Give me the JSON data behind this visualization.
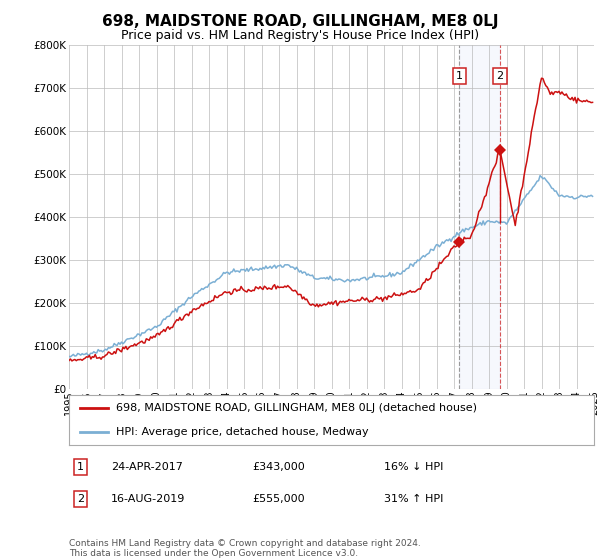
{
  "title": "698, MAIDSTONE ROAD, GILLINGHAM, ME8 0LJ",
  "subtitle": "Price paid vs. HM Land Registry's House Price Index (HPI)",
  "ylim": [
    0,
    800000
  ],
  "yticks": [
    0,
    100000,
    200000,
    300000,
    400000,
    500000,
    600000,
    700000,
    800000
  ],
  "ytick_labels": [
    "£0",
    "£100K",
    "£200K",
    "£300K",
    "£400K",
    "£500K",
    "£600K",
    "£700K",
    "£800K"
  ],
  "hpi_color": "#7bafd4",
  "price_color": "#cc1111",
  "transaction1": {
    "date_num": 2017.31,
    "price": 343000,
    "label": "1",
    "date_str": "24-APR-2017",
    "pct": "16% ↓ HPI"
  },
  "transaction2": {
    "date_num": 2019.63,
    "price": 555000,
    "label": "2",
    "date_str": "16-AUG-2019",
    "pct": "31% ↑ HPI"
  },
  "legend_line1": "698, MAIDSTONE ROAD, GILLINGHAM, ME8 0LJ (detached house)",
  "legend_line2": "HPI: Average price, detached house, Medway",
  "footnote": "Contains HM Land Registry data © Crown copyright and database right 2024.\nThis data is licensed under the Open Government Licence v3.0.",
  "background_color": "#ffffff",
  "grid_color": "#bbbbbb",
  "title_fontsize": 11,
  "subtitle_fontsize": 9,
  "tick_fontsize": 7.5,
  "legend_fontsize": 8,
  "footnote_fontsize": 6.5,
  "xstart": 1995,
  "xend": 2025
}
